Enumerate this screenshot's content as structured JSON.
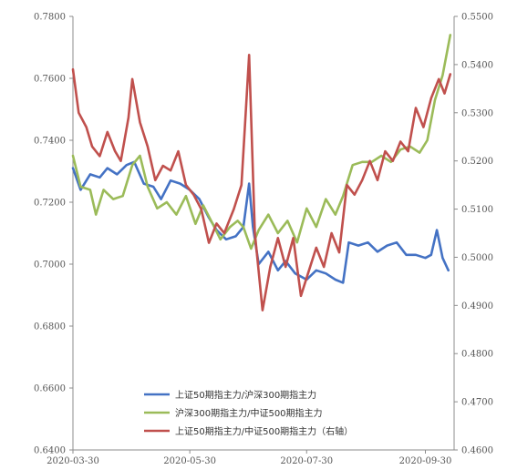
{
  "chart_data": {
    "type": "line",
    "x_ticks": [
      "2020-03-30",
      "2020-05-30",
      "2020-07-30",
      "2020-09-30"
    ],
    "y_left": {
      "min": 0.64,
      "max": 0.78,
      "ticks": [
        "0.6400",
        "0.6600",
        "0.6800",
        "0.7000",
        "0.7200",
        "0.7400",
        "0.7600",
        "0.7800"
      ]
    },
    "y_right": {
      "min": 0.46,
      "max": 0.55,
      "ticks": [
        "0.4600",
        "0.4700",
        "0.4800",
        "0.4900",
        "0.5000",
        "0.5100",
        "0.5200",
        "0.5300",
        "0.5400",
        "0.5500"
      ]
    },
    "legend_position": "bottom-center",
    "grid": false,
    "series": [
      {
        "name": "上证50期指主力/沪深300期指主力",
        "axis": "left",
        "color": "#4472C4",
        "points": [
          [
            "2020-03-30",
            0.731
          ],
          [
            "2020-04-03",
            0.724
          ],
          [
            "2020-04-08",
            0.729
          ],
          [
            "2020-04-13",
            0.728
          ],
          [
            "2020-04-17",
            0.731
          ],
          [
            "2020-04-22",
            0.729
          ],
          [
            "2020-04-27",
            0.732
          ],
          [
            "2020-05-01",
            0.733
          ],
          [
            "2020-05-06",
            0.726
          ],
          [
            "2020-05-11",
            0.725
          ],
          [
            "2020-05-15",
            0.721
          ],
          [
            "2020-05-20",
            0.727
          ],
          [
            "2020-05-25",
            0.726
          ],
          [
            "2020-05-30",
            0.724
          ],
          [
            "2020-06-04",
            0.721
          ],
          [
            "2020-06-09",
            0.715
          ],
          [
            "2020-06-13",
            0.711
          ],
          [
            "2020-06-18",
            0.708
          ],
          [
            "2020-06-23",
            0.709
          ],
          [
            "2020-06-27",
            0.712
          ],
          [
            "2020-06-30",
            0.726
          ],
          [
            "2020-07-02",
            0.712
          ],
          [
            "2020-07-05",
            0.7
          ],
          [
            "2020-07-10",
            0.704
          ],
          [
            "2020-07-15",
            0.698
          ],
          [
            "2020-07-19",
            0.701
          ],
          [
            "2020-07-24",
            0.697
          ],
          [
            "2020-07-30",
            0.695
          ],
          [
            "2020-08-04",
            0.698
          ],
          [
            "2020-08-09",
            0.697
          ],
          [
            "2020-08-14",
            0.695
          ],
          [
            "2020-08-18",
            0.694
          ],
          [
            "2020-08-21",
            0.707
          ],
          [
            "2020-08-26",
            0.706
          ],
          [
            "2020-08-31",
            0.707
          ],
          [
            "2020-09-05",
            0.704
          ],
          [
            "2020-09-10",
            0.706
          ],
          [
            "2020-09-15",
            0.707
          ],
          [
            "2020-09-20",
            0.703
          ],
          [
            "2020-09-25",
            0.703
          ],
          [
            "2020-09-30",
            0.702
          ],
          [
            "2020-10-03",
            0.703
          ],
          [
            "2020-10-06",
            0.711
          ],
          [
            "2020-10-09",
            0.702
          ],
          [
            "2020-10-12",
            0.698
          ]
        ]
      },
      {
        "name": "沪深300期指主力/中证500期指主力",
        "axis": "left",
        "color": "#9BBB59",
        "points": [
          [
            "2020-03-30",
            0.735
          ],
          [
            "2020-04-03",
            0.725
          ],
          [
            "2020-04-08",
            0.724
          ],
          [
            "2020-04-11",
            0.716
          ],
          [
            "2020-04-15",
            0.724
          ],
          [
            "2020-04-20",
            0.721
          ],
          [
            "2020-04-25",
            0.722
          ],
          [
            "2020-04-30",
            0.732
          ],
          [
            "2020-05-04",
            0.735
          ],
          [
            "2020-05-08",
            0.725
          ],
          [
            "2020-05-13",
            0.718
          ],
          [
            "2020-05-18",
            0.72
          ],
          [
            "2020-05-23",
            0.716
          ],
          [
            "2020-05-28",
            0.722
          ],
          [
            "2020-06-02",
            0.713
          ],
          [
            "2020-06-06",
            0.719
          ],
          [
            "2020-06-11",
            0.713
          ],
          [
            "2020-06-15",
            0.708
          ],
          [
            "2020-06-20",
            0.712
          ],
          [
            "2020-06-24",
            0.714
          ],
          [
            "2020-06-27",
            0.712
          ],
          [
            "2020-07-01",
            0.705
          ],
          [
            "2020-07-05",
            0.711
          ],
          [
            "2020-07-10",
            0.716
          ],
          [
            "2020-07-15",
            0.71
          ],
          [
            "2020-07-20",
            0.714
          ],
          [
            "2020-07-25",
            0.707
          ],
          [
            "2020-07-30",
            0.718
          ],
          [
            "2020-08-04",
            0.712
          ],
          [
            "2020-08-09",
            0.721
          ],
          [
            "2020-08-14",
            0.716
          ],
          [
            "2020-08-18",
            0.722
          ],
          [
            "2020-08-23",
            0.732
          ],
          [
            "2020-08-28",
            0.733
          ],
          [
            "2020-09-02",
            0.733
          ],
          [
            "2020-09-07",
            0.735
          ],
          [
            "2020-09-12",
            0.733
          ],
          [
            "2020-09-17",
            0.737
          ],
          [
            "2020-09-22",
            0.738
          ],
          [
            "2020-09-27",
            0.736
          ],
          [
            "2020-10-01",
            0.74
          ],
          [
            "2020-10-05",
            0.753
          ],
          [
            "2020-10-09",
            0.761
          ],
          [
            "2020-10-13",
            0.774
          ]
        ]
      },
      {
        "name": "上证50期指主力/中证500期指主力（右轴）",
        "axis": "right",
        "color": "#C0504D",
        "points": [
          [
            "2020-03-30",
            0.539
          ],
          [
            "2020-04-02",
            0.53
          ],
          [
            "2020-04-06",
            0.527
          ],
          [
            "2020-04-09",
            0.523
          ],
          [
            "2020-04-13",
            0.521
          ],
          [
            "2020-04-17",
            0.526
          ],
          [
            "2020-04-21",
            0.522
          ],
          [
            "2020-04-24",
            0.52
          ],
          [
            "2020-04-28",
            0.529
          ],
          [
            "2020-04-30",
            0.537
          ],
          [
            "2020-05-04",
            0.528
          ],
          [
            "2020-05-08",
            0.523
          ],
          [
            "2020-05-12",
            0.516
          ],
          [
            "2020-05-16",
            0.519
          ],
          [
            "2020-05-20",
            0.518
          ],
          [
            "2020-05-24",
            0.522
          ],
          [
            "2020-05-28",
            0.515
          ],
          [
            "2020-06-01",
            0.513
          ],
          [
            "2020-06-05",
            0.51
          ],
          [
            "2020-06-09",
            0.503
          ],
          [
            "2020-06-13",
            0.507
          ],
          [
            "2020-06-17",
            0.505
          ],
          [
            "2020-06-22",
            0.51
          ],
          [
            "2020-06-26",
            0.515
          ],
          [
            "2020-06-30",
            0.542
          ],
          [
            "2020-07-03",
            0.505
          ],
          [
            "2020-07-07",
            0.489
          ],
          [
            "2020-07-11",
            0.498
          ],
          [
            "2020-07-15",
            0.504
          ],
          [
            "2020-07-19",
            0.498
          ],
          [
            "2020-07-23",
            0.504
          ],
          [
            "2020-07-27",
            0.492
          ],
          [
            "2020-07-31",
            0.497
          ],
          [
            "2020-08-04",
            0.502
          ],
          [
            "2020-08-08",
            0.498
          ],
          [
            "2020-08-12",
            0.505
          ],
          [
            "2020-08-16",
            0.501
          ],
          [
            "2020-08-20",
            0.515
          ],
          [
            "2020-08-24",
            0.513
          ],
          [
            "2020-08-28",
            0.516
          ],
          [
            "2020-09-01",
            0.52
          ],
          [
            "2020-09-05",
            0.516
          ],
          [
            "2020-09-09",
            0.522
          ],
          [
            "2020-09-13",
            0.52
          ],
          [
            "2020-09-17",
            0.524
          ],
          [
            "2020-09-21",
            0.522
          ],
          [
            "2020-09-25",
            0.531
          ],
          [
            "2020-09-29",
            0.527
          ],
          [
            "2020-10-03",
            0.533
          ],
          [
            "2020-10-07",
            0.537
          ],
          [
            "2020-10-10",
            0.534
          ],
          [
            "2020-10-13",
            0.538
          ]
        ]
      }
    ]
  }
}
